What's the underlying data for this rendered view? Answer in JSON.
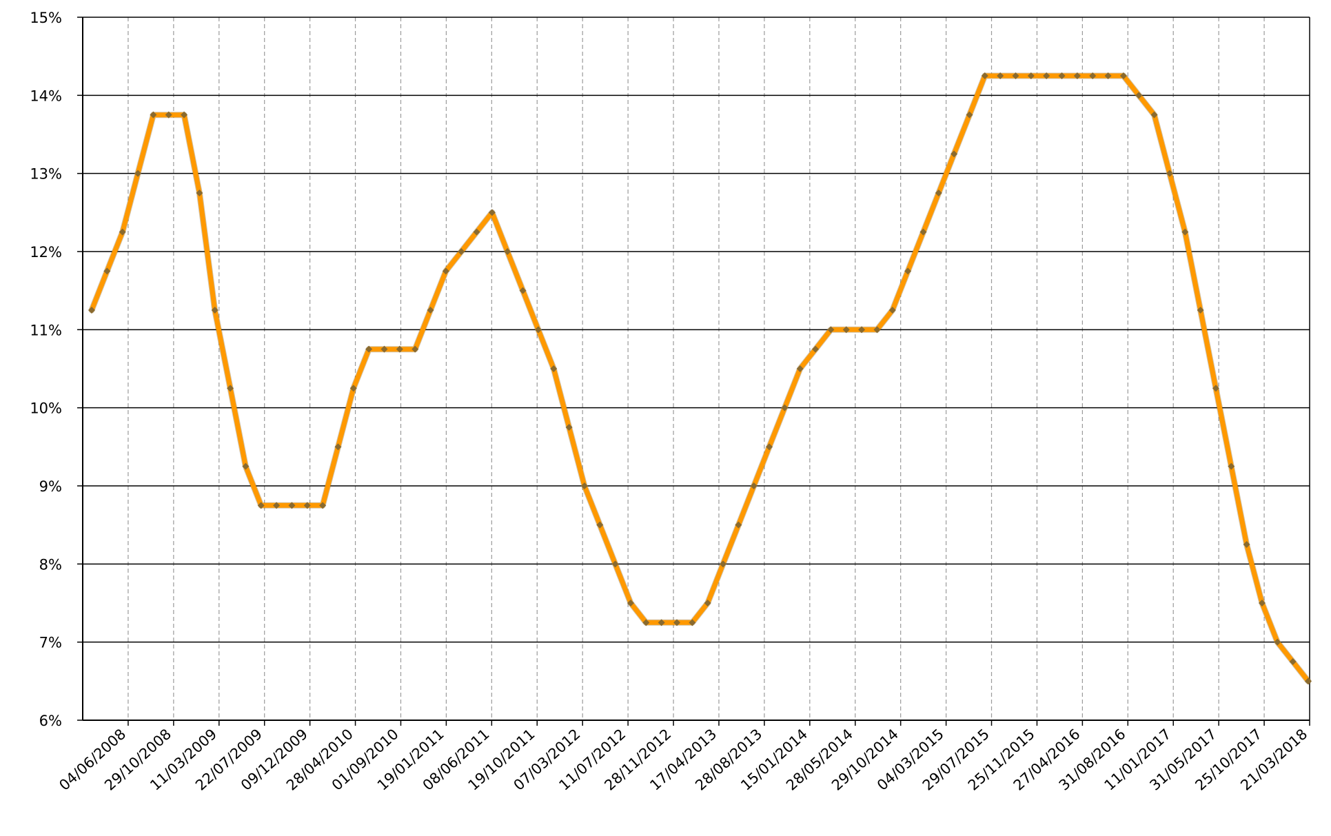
{
  "chart_data": {
    "type": "line",
    "title": "",
    "xlabel": "",
    "ylabel": "",
    "y_unit": "%",
    "ylim": [
      6,
      15
    ],
    "y_ticks": [
      6,
      7,
      8,
      9,
      10,
      11,
      12,
      13,
      14,
      15
    ],
    "grid": {
      "horizontal": true,
      "vertical": true,
      "vertical_style": "dashed"
    },
    "legend": "none",
    "colors": {
      "line": "#FF9900",
      "marker": "#8A6A2E",
      "grid_h": "#000000",
      "grid_v": "#9A9A9A",
      "axis": "#000000"
    },
    "x_tick_labels": [
      "04/06/2008",
      "29/10/2008",
      "11/03/2009",
      "22/07/2009",
      "09/12/2009",
      "28/04/2010",
      "01/09/2010",
      "19/01/2011",
      "08/06/2011",
      "19/10/2011",
      "07/03/2012",
      "11/07/2012",
      "28/11/2012",
      "17/04/2013",
      "28/08/2013",
      "15/01/2014",
      "28/05/2014",
      "29/10/2014",
      "04/03/2015",
      "29/07/2015",
      "25/11/2015",
      "27/04/2016",
      "31/08/2016",
      "11/01/2017",
      "31/05/2017",
      "25/10/2017",
      "21/03/2018"
    ],
    "series": [
      {
        "values": [
          11.25,
          11.75,
          12.25,
          13.0,
          13.75,
          13.75,
          13.75,
          12.75,
          11.25,
          10.25,
          9.25,
          8.75,
          8.75,
          8.75,
          8.75,
          8.75,
          9.5,
          10.25,
          10.75,
          10.75,
          10.75,
          10.75,
          11.25,
          11.75,
          12.0,
          12.25,
          12.5,
          12.0,
          11.5,
          11.0,
          10.5,
          9.75,
          9.0,
          8.5,
          8.0,
          7.5,
          7.25,
          7.25,
          7.25,
          7.25,
          7.5,
          8.0,
          8.5,
          9.0,
          9.5,
          10.0,
          10.5,
          10.75,
          11.0,
          11.0,
          11.0,
          11.0,
          11.25,
          11.75,
          12.25,
          12.75,
          13.25,
          13.75,
          14.25,
          14.25,
          14.25,
          14.25,
          14.25,
          14.25,
          14.25,
          14.25,
          14.25,
          14.25,
          14.0,
          13.75,
          13.0,
          12.25,
          11.25,
          10.25,
          9.25,
          8.25,
          7.5,
          7.0,
          6.75,
          6.5
        ]
      }
    ]
  }
}
